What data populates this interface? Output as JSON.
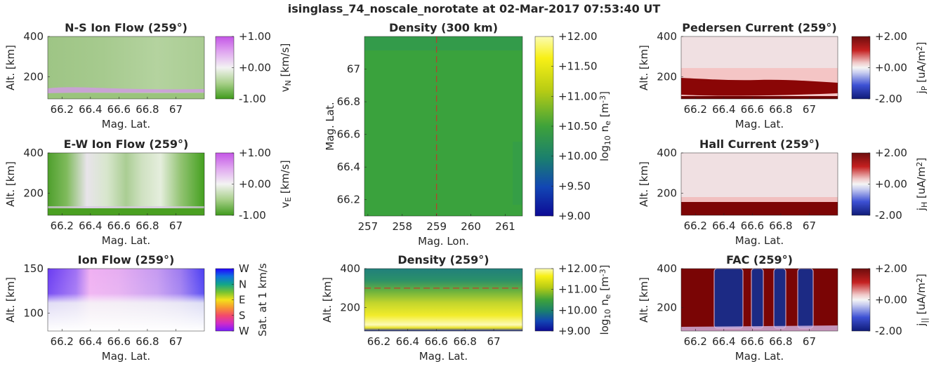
{
  "figure": {
    "title": "isinglass_74_noscale_norotate at 02-Mar-2017 07:53:40 UT"
  },
  "chart_data": [
    {
      "id": "ns",
      "type": "heatmap",
      "title": "N-S Ion Flow (259°)",
      "xlabel": "Mag. Lat.",
      "ylabel": "Alt. [km]",
      "xticks": [
        "66.2",
        "66.4",
        "66.6",
        "66.8",
        "67"
      ],
      "xtick_values": [
        66.2,
        66.4,
        66.6,
        66.8,
        67
      ],
      "xlim": [
        66.1,
        67.2
      ],
      "yticks": [
        "200",
        "400"
      ],
      "ytick_values": [
        200,
        400
      ],
      "ylim": [
        90,
        400
      ],
      "colorbar": {
        "label_main": "v",
        "label_sub": "N",
        "label_tail": " [km/s]",
        "ticks": [
          "+1.00",
          "+0.00",
          "-1.00"
        ],
        "colormap": "purple-white-green"
      }
    },
    {
      "id": "ew",
      "type": "heatmap",
      "title": "E-W Ion Flow (259°)",
      "xlabel": "Mag. Lat.",
      "ylabel": "Alt. [km]",
      "xticks": [
        "66.2",
        "66.4",
        "66.6",
        "66.8",
        "67"
      ],
      "xtick_values": [
        66.2,
        66.4,
        66.6,
        66.8,
        67
      ],
      "xlim": [
        66.1,
        67.2
      ],
      "yticks": [
        "200",
        "400"
      ],
      "ytick_values": [
        200,
        400
      ],
      "ylim": [
        90,
        400
      ],
      "colorbar": {
        "label_main": "v",
        "label_sub": "E",
        "label_tail": " [km/s]",
        "ticks": [
          "+1.00",
          "+0.00",
          "-1.00"
        ],
        "colormap": "purple-white-green"
      }
    },
    {
      "id": "ion",
      "type": "heatmap",
      "title": "Ion Flow (259°)",
      "xlabel": "Mag. Lat.",
      "ylabel": "Alt. [km]",
      "xticks": [
        "66.2",
        "66.4",
        "66.6",
        "66.8",
        "67"
      ],
      "xtick_values": [
        66.2,
        66.4,
        66.6,
        66.8,
        67
      ],
      "xlim": [
        66.1,
        67.2
      ],
      "yticks": [
        "100",
        "150"
      ],
      "ytick_values": [
        100,
        150
      ],
      "ylim": [
        80,
        150
      ],
      "colorbar": {
        "label_main": "Sat. at 1 km/s",
        "label_sub": "",
        "label_tail": "",
        "ticks": [
          "W",
          "N",
          "E",
          "S",
          "W"
        ],
        "colormap": "hue-wheel"
      }
    },
    {
      "id": "d300",
      "type": "heatmap",
      "title": "Density (300 km)",
      "xlabel": "Mag. Lon.",
      "ylabel": "Mag. Lat.",
      "xticks": [
        "257",
        "258",
        "259",
        "260",
        "261"
      ],
      "xtick_values": [
        257,
        258,
        259,
        260,
        261
      ],
      "xlim": [
        256.9,
        261.5
      ],
      "yticks": [
        "66.2",
        "66.4",
        "66.6",
        "66.8",
        "67"
      ],
      "ytick_values": [
        66.2,
        66.4,
        66.6,
        66.8,
        67
      ],
      "ylim": [
        66.1,
        67.2
      ],
      "marker_line": {
        "orientation": "vertical",
        "value": 259,
        "color": "#d62728"
      },
      "colorbar": {
        "label_main": "log",
        "label_sub": "10",
        "label_tail": " n",
        "label_sub2": "e",
        "label_unit": " [m",
        "label_sup": "-3",
        "label_end": "]",
        "ticks": [
          "+12.00",
          "+11.50",
          "+11.00",
          "+10.50",
          "+10.00",
          "+9.50",
          "+9.00"
        ],
        "colormap": "parula"
      }
    },
    {
      "id": "d259",
      "type": "heatmap",
      "title": "Density (259°)",
      "xlabel": "Mag. Lat.",
      "ylabel": "Alt. [km]",
      "xticks": [
        "66.2",
        "66.4",
        "66.6",
        "66.8",
        "67"
      ],
      "xtick_values": [
        66.2,
        66.4,
        66.6,
        66.8,
        67
      ],
      "xlim": [
        66.1,
        67.2
      ],
      "yticks": [
        "200",
        "400"
      ],
      "ytick_values": [
        200,
        400
      ],
      "ylim": [
        80,
        400
      ],
      "marker_line": {
        "orientation": "horizontal",
        "value": 300,
        "color": "#d62728"
      },
      "colorbar": {
        "label_main": "log",
        "label_sub": "10",
        "label_tail": " n",
        "label_sub2": "e",
        "label_unit": " [m",
        "label_sup": "-3",
        "label_end": "]",
        "ticks": [
          "+12.00",
          "+11.00",
          "+10.00",
          "+9.00"
        ],
        "colormap": "parula"
      }
    },
    {
      "id": "ped",
      "type": "heatmap",
      "title": "Pedersen Current (259°)",
      "xlabel": "Mag. Lat.",
      "ylabel": "Alt. [km]",
      "xticks": [
        "66.2",
        "66.4",
        "66.6",
        "66.8",
        "67"
      ],
      "xtick_values": [
        66.2,
        66.4,
        66.6,
        66.8,
        67
      ],
      "xlim": [
        66.1,
        67.2
      ],
      "yticks": [
        "200",
        "400"
      ],
      "ytick_values": [
        200,
        400
      ],
      "ylim": [
        90,
        400
      ],
      "colorbar": {
        "label_main": "j",
        "label_sub": "P",
        "label_tail": " [uA/m",
        "label_sup": "2",
        "label_end": "]",
        "ticks": [
          "+2.00",
          "+0.00",
          "-2.00"
        ],
        "colormap": "red-white-blue"
      }
    },
    {
      "id": "hall",
      "type": "heatmap",
      "title": "Hall Current (259°)",
      "xlabel": "Mag. Lat.",
      "ylabel": "Alt. [km]",
      "xticks": [
        "66.2",
        "66.4",
        "66.6",
        "66.8",
        "67"
      ],
      "xtick_values": [
        66.2,
        66.4,
        66.6,
        66.8,
        67
      ],
      "xlim": [
        66.1,
        67.2
      ],
      "yticks": [
        "200",
        "400"
      ],
      "ytick_values": [
        200,
        400
      ],
      "ylim": [
        90,
        400
      ],
      "colorbar": {
        "label_main": "j",
        "label_sub": "H",
        "label_tail": " [uA/m",
        "label_sup": "2",
        "label_end": "]",
        "ticks": [
          "+2.00",
          "+0.00",
          "-2.00"
        ],
        "colormap": "red-white-blue"
      }
    },
    {
      "id": "fac",
      "type": "heatmap",
      "title": "FAC (259°)",
      "xlabel": "Mag. Lat.",
      "ylabel": "Alt. [km]",
      "xticks": [
        "66.2",
        "66.4",
        "66.6",
        "66.8",
        "67"
      ],
      "xtick_values": [
        66.2,
        66.4,
        66.6,
        66.8,
        67
      ],
      "xlim": [
        66.1,
        67.2
      ],
      "yticks": [
        "200",
        "400"
      ],
      "ytick_values": [
        200,
        400
      ],
      "ylim": [
        80,
        400
      ],
      "colorbar": {
        "label_main": "j",
        "label_sub": "||",
        "label_tail": " [uA/m",
        "label_sup": "2",
        "label_end": "]",
        "ticks": [
          "+2.00",
          "+0.00",
          "-2.00"
        ],
        "colormap": "red-white-blue"
      }
    }
  ]
}
